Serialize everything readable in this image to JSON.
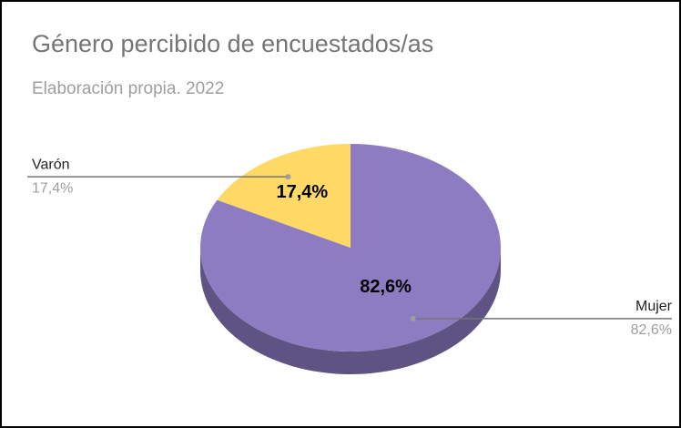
{
  "chart_data": {
    "type": "pie",
    "title": "Género percibido de encuestados/as",
    "subtitle": "Elaboración propia. 2022",
    "categories": [
      "Mujer",
      "Varón"
    ],
    "values": [
      82.6,
      17.4
    ],
    "value_labels": [
      "82,6%",
      "17,4%"
    ],
    "colors": [
      "#8e7cc3",
      "#ffd966"
    ]
  }
}
